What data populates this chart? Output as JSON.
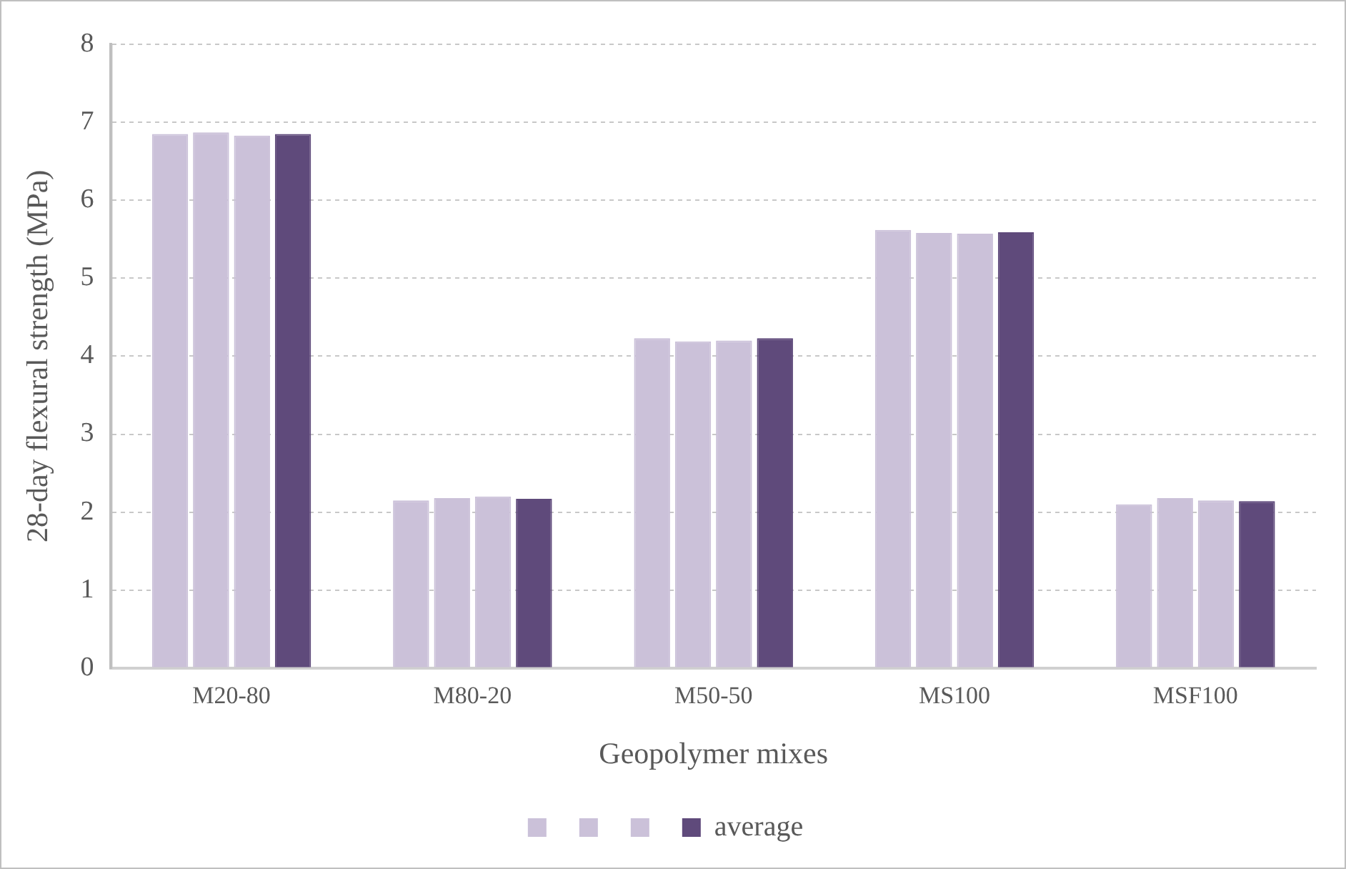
{
  "chart_data": {
    "type": "bar",
    "xlabel": "Geopolymer mixes",
    "ylabel": "28-day flexural strength (MPa)",
    "categories": [
      "M20-80",
      "M80-20",
      "M50-50",
      "MS100",
      "MSF100"
    ],
    "series": [
      {
        "color": "#cbc1d9",
        "values": [
          6.85,
          2.15,
          4.23,
          5.62,
          2.1
        ]
      },
      {
        "color": "#cbc1d9",
        "values": [
          6.87,
          2.18,
          4.19,
          5.58,
          2.18
        ]
      },
      {
        "color": "#cbc1d9",
        "values": [
          6.83,
          2.2,
          4.2,
          5.57,
          2.15
        ]
      },
      {
        "name": "average",
        "color": "#5f4a7b",
        "values": [
          6.85,
          2.17,
          4.23,
          5.59,
          2.14
        ]
      }
    ],
    "ylim": [
      0,
      8
    ],
    "yticks": [
      0,
      1,
      2,
      3,
      4,
      5,
      6,
      7,
      8
    ],
    "grid": "y",
    "legend": "bottom"
  }
}
